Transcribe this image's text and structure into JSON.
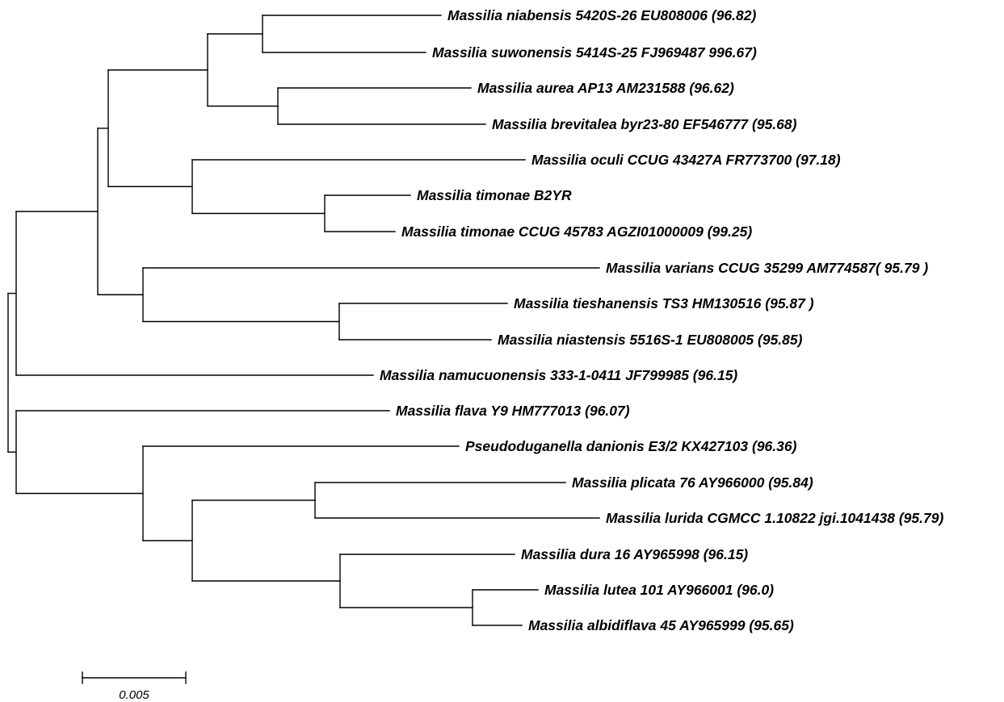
{
  "taxa": [
    {
      "id": "t01",
      "label": "Massilia niabensis 5420S-26 EU808006 (96.82)"
    },
    {
      "id": "t02",
      "label": "Massilia suwonensis 5414S-25 FJ969487 996.67)"
    },
    {
      "id": "t03",
      "label": "Massilia aurea AP13 AM231588 (96.62)"
    },
    {
      "id": "t04",
      "label": "Massilia brevitalea byr23-80 EF546777 (95.68)"
    },
    {
      "id": "t05",
      "label": "Massilia oculi CCUG 43427A FR773700 (97.18)"
    },
    {
      "id": "t06",
      "label": "Massilia timonae B2YR"
    },
    {
      "id": "t07",
      "label": "Massilia timonae CCUG 45783 AGZI01000009 (99.25)"
    },
    {
      "id": "t08",
      "label": "Massilia varians CCUG 35299 AM774587( 95.79 )"
    },
    {
      "id": "t09",
      "label": "Massilia tieshanensis TS3 HM130516 (95.87 )"
    },
    {
      "id": "t10",
      "label": "Massilia niastensis 5516S-1 EU808005 (95.85)"
    },
    {
      "id": "t11",
      "label": "Massilia namucuonensis 333-1-0411 JF799985 (96.15)"
    },
    {
      "id": "t12",
      "label": "Massilia flava Y9 HM777013 (96.07)"
    },
    {
      "id": "t13",
      "label": "Pseudoduganella danionis E3/2 KX427103 (96.36)"
    },
    {
      "id": "t14",
      "label": "Massilia plicata 76 AY966000 (95.84)"
    },
    {
      "id": "t15",
      "label": "Massilia lurida CGMCC 1.10822 jgi.1041438 (95.79)"
    },
    {
      "id": "t16",
      "label": "Massilia dura 16 AY965998 (96.15)"
    },
    {
      "id": "t17",
      "label": "Massilia lutea 101 AY966001 (96.0)"
    },
    {
      "id": "t18",
      "label": "Massilia albidiflava 45 AY965999 (95.65)"
    }
  ],
  "scale_bar": {
    "label": "0.005"
  },
  "colors": {
    "line": "#000000",
    "text": "#000000",
    "background": "#ffffff"
  }
}
